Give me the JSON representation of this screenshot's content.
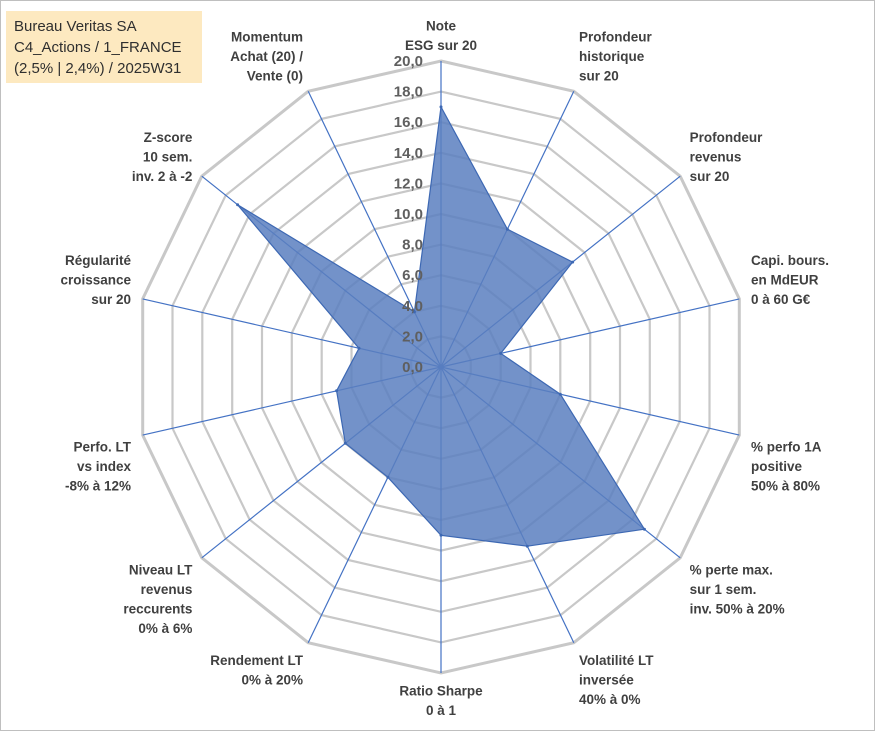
{
  "title_box": {
    "line1": "Bureau Veritas SA",
    "line2": "C4_Actions / 1_FRANCE",
    "line3": "(2,5% | 2,4%) / 2025W31"
  },
  "chart_data": {
    "type": "radar",
    "title": "Bureau Veritas SA C4_Actions / 1_FRANCE (2,5% | 2,4%) / 2025W31",
    "rlim": [
      0,
      20
    ],
    "ticks": [
      "0,0",
      "2,0",
      "4,0",
      "6,0",
      "8,0",
      "10,0",
      "12,0",
      "14,0",
      "16,0",
      "18,0",
      "20,0"
    ],
    "grid": true,
    "fill_color": "#5a7fbf",
    "grid_color": "#c8c8c8",
    "axis_color": "#4472c4",
    "categories": [
      [
        "Note",
        "ESG sur 20"
      ],
      [
        "Profondeur",
        "historique",
        "sur 20"
      ],
      [
        "Profondeur",
        "revenus",
        "sur 20"
      ],
      [
        "Capi. bours.",
        "en MdEUR",
        "0 à 60 G€"
      ],
      [
        "% perfo 1A",
        "positive",
        "50% à 80%"
      ],
      [
        "% perte max.",
        "sur 1 sem.",
        "inv. 50% à 20%"
      ],
      [
        "Volatilité LT",
        "inversée",
        "40% à 0%"
      ],
      [
        "Ratio Sharpe",
        "0 à 1"
      ],
      [
        "Rendement LT",
        "0% à 20%"
      ],
      [
        "Niveau LT",
        "revenus",
        "reccurents",
        "0% à 6%"
      ],
      [
        "Perfo. LT",
        "vs index",
        "-8% à 12%"
      ],
      [
        "Régularité",
        "croissance",
        "sur 20"
      ],
      [
        "Z-score",
        "10 sem.",
        "inv. 2 à -2"
      ],
      [
        "Momentum",
        "Achat (20) /",
        "Vente (0)"
      ]
    ],
    "values": [
      17.0,
      10.0,
      11.0,
      4.0,
      8.0,
      17.0,
      13.0,
      11.0,
      8.0,
      8.0,
      7.0,
      5.5,
      17.0,
      4.0
    ]
  }
}
